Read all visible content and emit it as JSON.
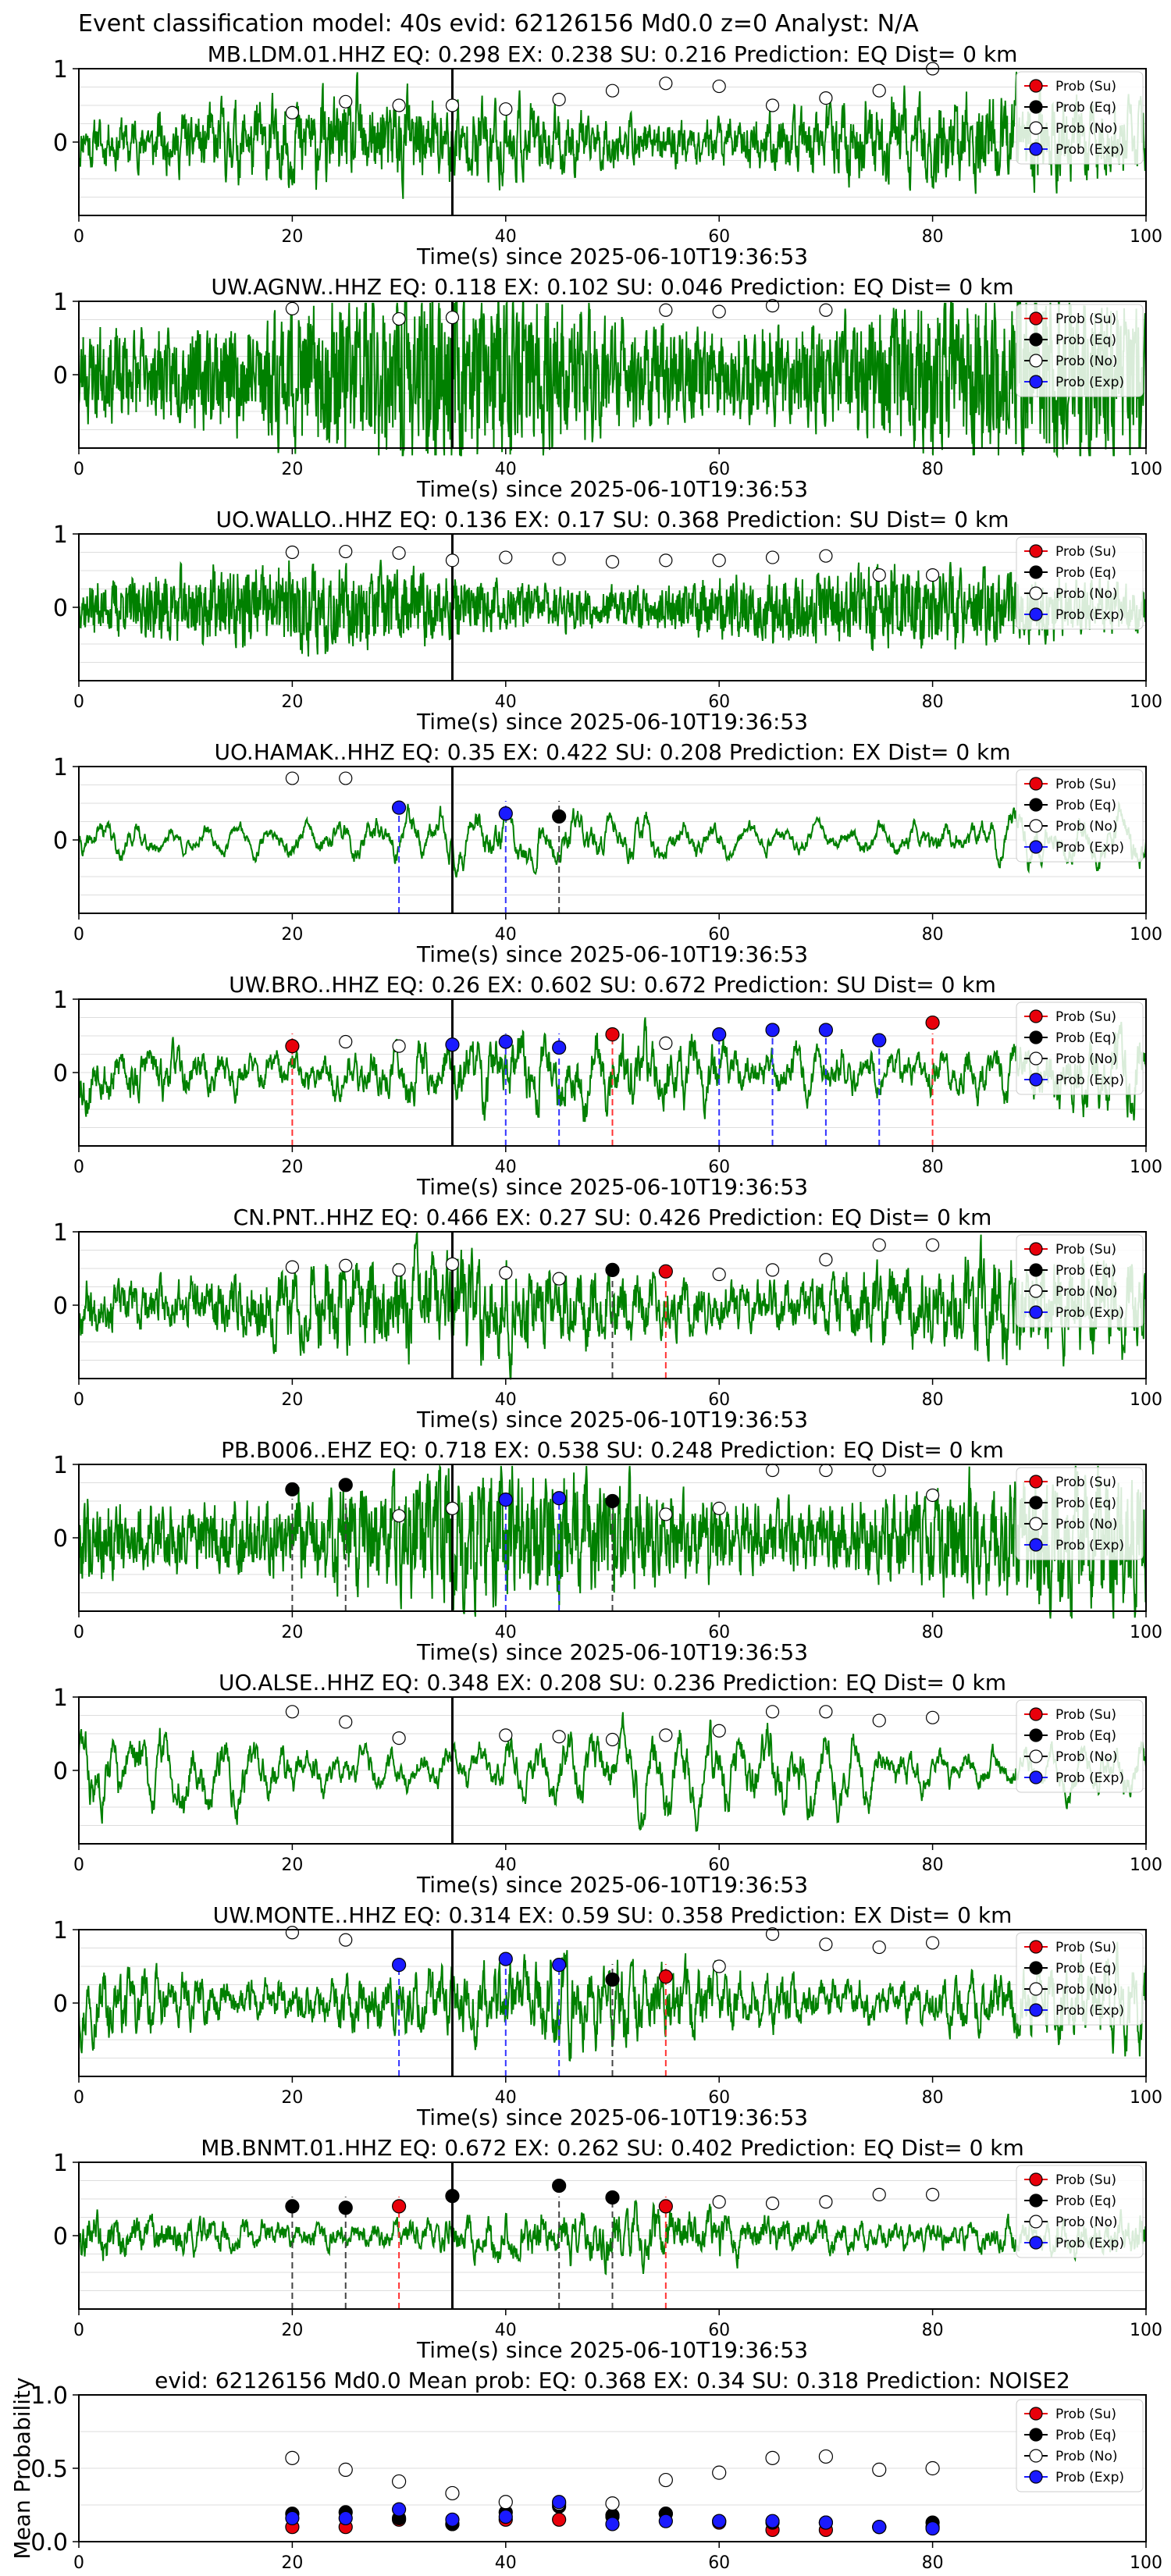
{
  "figure_title": "Event classification model: 40s evid: 62126156 Md0.0 z=0 Analyst: N/A",
  "legend_labels": [
    "Prob (Su)",
    "Prob (Eq)",
    "Prob (No)",
    "Prob (Exp)"
  ],
  "colors": {
    "su": "#e8000b",
    "eq": "#000000",
    "no": "#ffffff",
    "exp": "#1a1aff",
    "trace": "#008000",
    "su_line": "#ff3333",
    "eq_line": "#444444",
    "exp_line": "#3333ff"
  },
  "x_times": [
    20,
    25,
    30,
    35,
    40,
    45,
    50,
    55,
    60,
    65,
    70,
    75,
    80
  ],
  "chart_data": [
    {
      "type": "line",
      "title": "MB.LDM.01.HHZ   EQ: 0.298  EX: 0.238  SU: 0.216   Prediction: EQ    Dist= 0 km",
      "xlabel": "Time(s) since 2025-06-10T19:36:53",
      "xlim": [
        0,
        100
      ],
      "ylim": [
        -1,
        1
      ],
      "xticks": [
        0,
        20,
        40,
        60,
        80,
        100
      ],
      "yticks": [
        1,
        0
      ],
      "arrival": 35,
      "trace": {
        "seed": 11,
        "amp": 0.45,
        "freq": 6.0,
        "smooth": 0.55
      },
      "noise_probs": [
        0.4,
        0.55,
        0.5,
        0.5,
        0.45,
        0.58,
        0.7,
        0.8,
        0.76,
        0.5,
        0.6,
        0.7,
        1.0
      ],
      "points": [],
      "dashes": []
    },
    {
      "type": "line",
      "title": "UW.AGNW..HHZ   EQ: 0.118  EX: 0.102  SU: 0.046   Prediction: EQ    Dist= 0 km",
      "xlabel": "Time(s) since 2025-06-10T19:36:53",
      "xlim": [
        0,
        100
      ],
      "ylim": [
        -1,
        1
      ],
      "xticks": [
        0,
        20,
        40,
        60,
        80,
        100
      ],
      "yticks": [
        1,
        0
      ],
      "arrival": 35,
      "trace": {
        "seed": 23,
        "amp": 0.6,
        "freq": 9.0,
        "smooth": 0.2
      },
      "noise_probs": [
        0.9,
        null,
        0.76,
        0.78,
        null,
        null,
        null,
        0.88,
        0.86,
        0.94,
        0.88,
        null,
        null
      ],
      "points": [],
      "dashes": []
    },
    {
      "type": "line",
      "title": "UO.WALLO..HHZ   EQ: 0.136  EX: 0.17  SU: 0.368   Prediction: SU    Dist= 0 km",
      "xlabel": "Time(s) since 2025-06-10T19:36:53",
      "xlim": [
        0,
        100
      ],
      "ylim": [
        -1,
        1
      ],
      "xticks": [
        0,
        20,
        40,
        60,
        80,
        100
      ],
      "yticks": [
        1,
        0
      ],
      "arrival": 35,
      "trace": {
        "seed": 37,
        "amp": 0.3,
        "freq": 9.0,
        "smooth": 0.25
      },
      "noise_probs": [
        0.75,
        0.76,
        0.74,
        0.64,
        0.68,
        0.66,
        0.62,
        0.64,
        0.64,
        0.68,
        0.7,
        0.44,
        0.44
      ],
      "points": [],
      "dashes": []
    },
    {
      "type": "line",
      "title": "UO.HAMAK..HHZ   EQ: 0.35  EX: 0.422  SU: 0.208   Prediction: EX    Dist= 0 km",
      "xlabel": "Time(s) since 2025-06-10T19:36:53",
      "xlim": [
        0,
        100
      ],
      "ylim": [
        -1,
        1
      ],
      "xticks": [
        0,
        20,
        40,
        60,
        80,
        100
      ],
      "yticks": [
        1,
        0
      ],
      "arrival": 35,
      "trace": {
        "seed": 41,
        "amp": 0.45,
        "freq": 2.2,
        "smooth": 0.88
      },
      "noise_probs": [
        0.84,
        0.84,
        null,
        null,
        null,
        null,
        null,
        null,
        null,
        null,
        null,
        null,
        null
      ],
      "points": [
        {
          "t": 30,
          "cls": "exp",
          "p": 0.44
        },
        {
          "t": 40,
          "cls": "exp",
          "p": 0.36
        },
        {
          "t": 45,
          "cls": "eq",
          "p": 0.32
        }
      ],
      "dashes": [
        {
          "t": 30,
          "cls": "exp"
        },
        {
          "t": 40,
          "cls": "exp"
        },
        {
          "t": 45,
          "cls": "eq"
        }
      ]
    },
    {
      "type": "line",
      "title": "UW.BRO..HHZ   EQ: 0.26  EX: 0.602  SU: 0.672   Prediction: SU    Dist= 0 km",
      "xlabel": "Time(s) since 2025-06-10T19:36:53",
      "xlim": [
        0,
        100
      ],
      "ylim": [
        -1,
        1
      ],
      "xticks": [
        0,
        20,
        40,
        60,
        80,
        100
      ],
      "yticks": [
        1,
        0
      ],
      "arrival": 35,
      "trace": {
        "seed": 53,
        "amp": 0.55,
        "freq": 3.0,
        "smooth": 0.78
      },
      "noise_probs": [
        null,
        0.42,
        0.36,
        null,
        null,
        null,
        null,
        0.4,
        null,
        null,
        null,
        null,
        null
      ],
      "points": [
        {
          "t": 20,
          "cls": "su",
          "p": 0.36
        },
        {
          "t": 35,
          "cls": "exp",
          "p": 0.38
        },
        {
          "t": 40,
          "cls": "exp",
          "p": 0.42
        },
        {
          "t": 45,
          "cls": "exp",
          "p": 0.34
        },
        {
          "t": 50,
          "cls": "su",
          "p": 0.52
        },
        {
          "t": 60,
          "cls": "exp",
          "p": 0.52
        },
        {
          "t": 65,
          "cls": "exp",
          "p": 0.58
        },
        {
          "t": 70,
          "cls": "exp",
          "p": 0.58
        },
        {
          "t": 75,
          "cls": "exp",
          "p": 0.44
        },
        {
          "t": 80,
          "cls": "su",
          "p": 0.68
        }
      ],
      "dashes": [
        {
          "t": 20,
          "cls": "su"
        },
        {
          "t": 40,
          "cls": "exp"
        },
        {
          "t": 45,
          "cls": "exp"
        },
        {
          "t": 50,
          "cls": "su"
        },
        {
          "t": 60,
          "cls": "exp"
        },
        {
          "t": 65,
          "cls": "exp"
        },
        {
          "t": 70,
          "cls": "exp"
        },
        {
          "t": 75,
          "cls": "exp"
        },
        {
          "t": 80,
          "cls": "su"
        }
      ]
    },
    {
      "type": "line",
      "title": "CN.PNT..HHZ   EQ: 0.466  EX: 0.27  SU: 0.426   Prediction: EQ    Dist= 0 km",
      "xlabel": "Time(s) since 2025-06-10T19:36:53",
      "xlim": [
        0,
        100
      ],
      "ylim": [
        -1,
        1
      ],
      "xticks": [
        0,
        20,
        40,
        60,
        80,
        100
      ],
      "yticks": [
        1,
        0
      ],
      "arrival": 35,
      "trace": {
        "seed": 67,
        "amp": 0.5,
        "freq": 5.0,
        "smooth": 0.6
      },
      "noise_probs": [
        0.52,
        0.54,
        0.48,
        0.56,
        0.44,
        0.36,
        null,
        null,
        0.42,
        0.48,
        0.62,
        0.82,
        0.82
      ],
      "points": [
        {
          "t": 50,
          "cls": "eq",
          "p": 0.48
        },
        {
          "t": 55,
          "cls": "su",
          "p": 0.46
        }
      ],
      "dashes": [
        {
          "t": 50,
          "cls": "eq"
        },
        {
          "t": 55,
          "cls": "su"
        }
      ]
    },
    {
      "type": "line",
      "title": "PB.B006..EHZ   EQ: 0.718  EX: 0.538  SU: 0.248   Prediction: EQ    Dist= 0 km",
      "xlabel": "Time(s) since 2025-06-10T19:36:53",
      "xlim": [
        0,
        100
      ],
      "ylim": [
        -1,
        1
      ],
      "xticks": [
        0,
        20,
        40,
        60,
        80,
        100
      ],
      "yticks": [
        1,
        0
      ],
      "arrival": 35,
      "trace": {
        "seed": 79,
        "amp": 0.55,
        "freq": 7.0,
        "smooth": 0.4
      },
      "noise_probs": [
        null,
        null,
        0.3,
        0.4,
        null,
        null,
        null,
        0.32,
        0.4,
        0.92,
        0.92,
        0.92,
        0.58
      ],
      "points": [
        {
          "t": 20,
          "cls": "eq",
          "p": 0.66
        },
        {
          "t": 25,
          "cls": "eq",
          "p": 0.72
        },
        {
          "t": 40,
          "cls": "exp",
          "p": 0.52
        },
        {
          "t": 45,
          "cls": "exp",
          "p": 0.54
        },
        {
          "t": 50,
          "cls": "eq",
          "p": 0.5
        }
      ],
      "dashes": [
        {
          "t": 20,
          "cls": "eq"
        },
        {
          "t": 25,
          "cls": "eq"
        },
        {
          "t": 40,
          "cls": "exp"
        },
        {
          "t": 45,
          "cls": "exp"
        },
        {
          "t": 50,
          "cls": "eq"
        }
      ]
    },
    {
      "type": "line",
      "title": "UO.ALSE..HHZ   EQ: 0.348  EX: 0.208  SU: 0.236   Prediction: EQ    Dist= 0 km",
      "xlabel": "Time(s) since 2025-06-10T19:36:53",
      "xlim": [
        0,
        100
      ],
      "ylim": [
        -1,
        1
      ],
      "xticks": [
        0,
        20,
        40,
        60,
        80,
        100
      ],
      "yticks": [
        1,
        0
      ],
      "arrival": 35,
      "trace": {
        "seed": 83,
        "amp": 0.65,
        "freq": 2.6,
        "smooth": 0.86
      },
      "noise_probs": [
        0.8,
        0.66,
        0.44,
        null,
        0.48,
        0.46,
        0.42,
        0.48,
        0.54,
        0.8,
        0.8,
        0.68,
        0.72
      ],
      "points": [],
      "dashes": []
    },
    {
      "type": "line",
      "title": "UW.MONTE..HHZ   EQ: 0.314  EX: 0.59  SU: 0.358   Prediction: EX    Dist= 0 km",
      "xlabel": "Time(s) since 2025-06-10T19:36:53",
      "xlim": [
        0,
        100
      ],
      "ylim": [
        -1,
        1
      ],
      "xticks": [
        0,
        20,
        40,
        60,
        80,
        100
      ],
      "yticks": [
        1,
        0
      ],
      "arrival": 35,
      "trace": {
        "seed": 97,
        "amp": 0.45,
        "freq": 5.5,
        "smooth": 0.65
      },
      "noise_probs": [
        0.96,
        0.86,
        null,
        null,
        null,
        null,
        null,
        null,
        0.5,
        0.94,
        0.8,
        0.76,
        0.82
      ],
      "points": [
        {
          "t": 30,
          "cls": "exp",
          "p": 0.52
        },
        {
          "t": 40,
          "cls": "exp",
          "p": 0.6
        },
        {
          "t": 45,
          "cls": "exp",
          "p": 0.52
        },
        {
          "t": 50,
          "cls": "eq",
          "p": 0.32
        },
        {
          "t": 55,
          "cls": "su",
          "p": 0.36
        }
      ],
      "dashes": [
        {
          "t": 30,
          "cls": "exp"
        },
        {
          "t": 40,
          "cls": "exp"
        },
        {
          "t": 45,
          "cls": "exp"
        },
        {
          "t": 50,
          "cls": "eq"
        },
        {
          "t": 55,
          "cls": "su"
        }
      ]
    },
    {
      "type": "line",
      "title": "MB.BNMT.01.HHZ   EQ: 0.672  EX: 0.262  SU: 0.402   Prediction: EQ    Dist= 0 km",
      "xlabel": "Time(s) since 2025-06-10T19:36:53",
      "xlim": [
        0,
        100
      ],
      "ylim": [
        -1,
        1
      ],
      "xticks": [
        0,
        20,
        40,
        60,
        80,
        100
      ],
      "yticks": [
        1,
        0
      ],
      "arrival": 35,
      "trace": {
        "seed": 109,
        "amp": 0.3,
        "freq": 4.0,
        "smooth": 0.7
      },
      "noise_probs": [
        null,
        null,
        null,
        null,
        null,
        null,
        null,
        null,
        0.46,
        0.44,
        0.46,
        0.56,
        0.56
      ],
      "points": [
        {
          "t": 20,
          "cls": "eq",
          "p": 0.4
        },
        {
          "t": 25,
          "cls": "eq",
          "p": 0.38
        },
        {
          "t": 30,
          "cls": "su",
          "p": 0.4
        },
        {
          "t": 35,
          "cls": "eq",
          "p": 0.54
        },
        {
          "t": 45,
          "cls": "eq",
          "p": 0.68
        },
        {
          "t": 50,
          "cls": "eq",
          "p": 0.52
        },
        {
          "t": 55,
          "cls": "su",
          "p": 0.4
        }
      ],
      "dashes": [
        {
          "t": 20,
          "cls": "eq"
        },
        {
          "t": 25,
          "cls": "eq"
        },
        {
          "t": 30,
          "cls": "su"
        },
        {
          "t": 45,
          "cls": "eq"
        },
        {
          "t": 50,
          "cls": "eq"
        },
        {
          "t": 55,
          "cls": "su"
        }
      ]
    },
    {
      "type": "scatter",
      "title": "evid: 62126156  Md0.0   Mean prob:   EQ: 0.368  EX: 0.34  SU: 0.318   Prediction: NOISE2",
      "xlabel": "",
      "ylabel": "Mean Probability",
      "xlim": [
        0,
        100
      ],
      "ylim": [
        0,
        1
      ],
      "xticks": [
        0,
        20,
        40,
        60,
        80,
        100
      ],
      "yticks": [
        0.0,
        0.5,
        1.0
      ],
      "x": [
        20,
        25,
        30,
        35,
        40,
        45,
        50,
        55,
        60,
        65,
        70,
        75,
        80
      ],
      "series": [
        {
          "name": "Prob (Su)",
          "cls": "su",
          "values": [
            0.1,
            0.1,
            0.15,
            0.12,
            0.15,
            0.15,
            0.17,
            0.19,
            0.13,
            0.08,
            0.08,
            0.1,
            0.1
          ]
        },
        {
          "name": "Prob (Eq)",
          "cls": "eq",
          "values": [
            0.19,
            0.2,
            0.16,
            0.12,
            0.2,
            0.24,
            0.18,
            0.19,
            0.14,
            0.13,
            0.13,
            0.1,
            0.13
          ]
        },
        {
          "name": "Prob (No)",
          "cls": "no",
          "values": [
            0.57,
            0.49,
            0.41,
            0.33,
            0.27,
            0.26,
            0.26,
            0.42,
            0.47,
            0.57,
            0.58,
            0.49,
            0.5
          ]
        },
        {
          "name": "Prob (Exp)",
          "cls": "exp",
          "values": [
            0.16,
            0.16,
            0.22,
            0.15,
            0.17,
            0.27,
            0.12,
            0.14,
            0.14,
            0.14,
            0.13,
            0.1,
            0.09
          ]
        }
      ]
    }
  ]
}
